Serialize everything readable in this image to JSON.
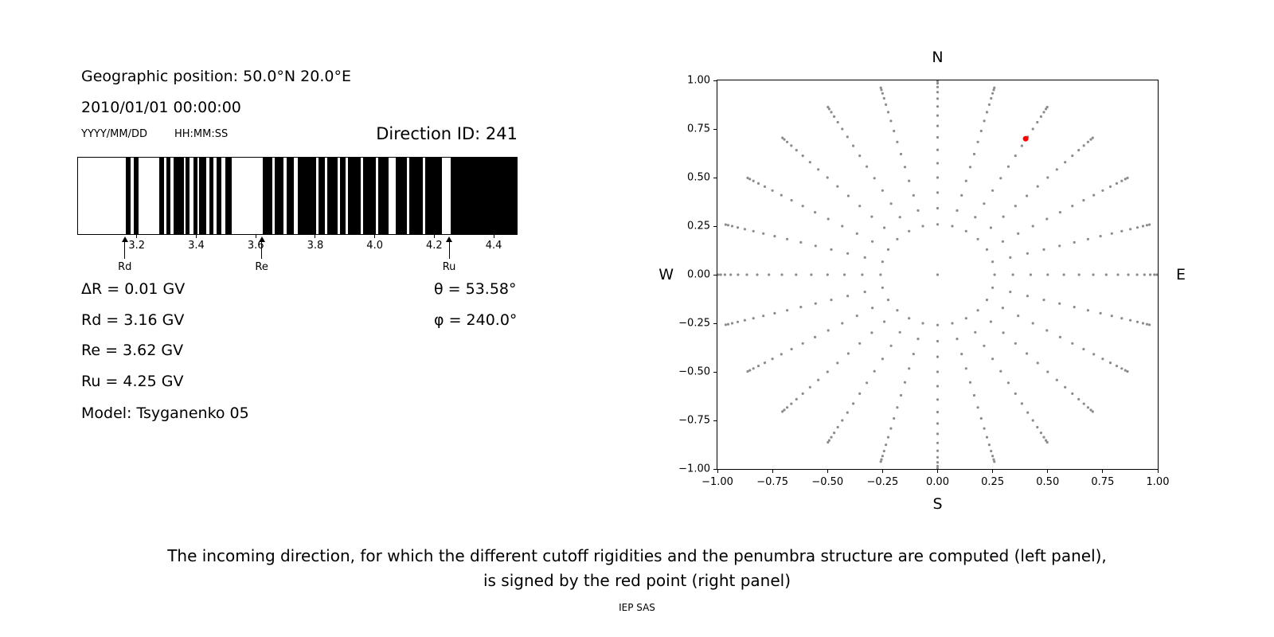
{
  "page": {
    "caption_line1": "The incoming direction, for which the different cutoff rigidities and the penumbra structure are computed (left panel),",
    "caption_line2": "is signed by the red point (right panel)",
    "footer": "IEP SAS",
    "background": "#ffffff"
  },
  "left_panel": {
    "geo_position": "Geographic position: 50.0°N 20.0°E",
    "datetime": "2010/01/01 00:00:00",
    "date_format_label": "YYYY/MM/DD",
    "time_format_label": "HH:MM:SS",
    "direction_id_label": "Direction ID: 241",
    "info_lines": {
      "delta_r": "ΔR = 0.01 GV",
      "rd": "Rd = 3.16 GV",
      "re": "Re = 3.62 GV",
      "ru": "Ru = 4.25 GV",
      "model": "Model: Tsyganenko 05"
    },
    "theta": "θ = 53.58°",
    "phi": "φ = 240.0°"
  },
  "right_panel": {
    "compass": {
      "north": "N",
      "south": "S",
      "west": "W",
      "east": "E"
    }
  },
  "chart_data": [
    {
      "type": "bar",
      "name": "penumbra-structure",
      "title": "Direction ID: 241",
      "xlabel": "",
      "ylabel": "",
      "xlim": [
        3.0,
        4.48
      ],
      "x_tick_values": [
        3.2,
        3.4,
        3.6,
        3.8,
        4.0,
        4.2,
        4.4
      ],
      "x_tick_labels": [
        "3.2",
        "3.4",
        "3.6",
        "3.8",
        "4.0",
        "4.2",
        "4.4"
      ],
      "delta_r_gv": 0.01,
      "rd_gv": 3.16,
      "re_gv": 3.62,
      "ru_gv": 4.25,
      "model": "Tsyganenko 05",
      "theta_deg": 53.58,
      "phi_deg": 240.0,
      "bar_color": "#000000",
      "markers": [
        {
          "label": "Rd",
          "value": 3.16
        },
        {
          "label": "Re",
          "value": 3.62
        },
        {
          "label": "Ru",
          "value": 4.25
        }
      ],
      "allowed_bands_gv": [
        [
          3.16,
          3.176
        ],
        [
          3.186,
          3.202
        ],
        [
          3.272,
          3.29
        ],
        [
          3.298,
          3.312
        ],
        [
          3.32,
          3.355
        ],
        [
          3.362,
          3.376
        ],
        [
          3.388,
          3.4
        ],
        [
          3.408,
          3.432
        ],
        [
          3.442,
          3.456
        ],
        [
          3.466,
          3.482
        ],
        [
          3.494,
          3.516
        ],
        [
          3.62,
          3.652
        ],
        [
          3.662,
          3.69
        ],
        [
          3.702,
          3.726
        ],
        [
          3.738,
          3.8
        ],
        [
          3.808,
          3.83
        ],
        [
          3.838,
          3.872
        ],
        [
          3.88,
          3.9
        ],
        [
          3.908,
          3.95
        ],
        [
          3.958,
          4.0
        ],
        [
          4.008,
          4.044
        ],
        [
          4.068,
          4.105
        ],
        [
          4.113,
          4.16
        ],
        [
          4.168,
          4.224
        ],
        [
          4.252,
          4.48
        ]
      ]
    },
    {
      "type": "scatter",
      "name": "incoming-directions",
      "title": "",
      "xlabel": "S",
      "ylabel": "",
      "xlim": [
        -1,
        1
      ],
      "ylim": [
        -1,
        1
      ],
      "x_tick_values": [
        -1,
        -0.75,
        -0.5,
        -0.25,
        0,
        0.25,
        0.5,
        0.75,
        1
      ],
      "x_tick_labels": [
        "−1.00",
        "−0.75",
        "−0.50",
        "−0.25",
        "0.00",
        "0.25",
        "0.50",
        "0.75",
        "1.00"
      ],
      "y_tick_values": [
        -1,
        -0.75,
        -0.5,
        -0.25,
        0,
        0.25,
        0.5,
        0.75,
        1
      ],
      "y_tick_labels": [
        "−1.00",
        "−0.75",
        "−0.50",
        "−0.25",
        "0.00",
        "0.25",
        "0.50",
        "0.75",
        "1.00"
      ],
      "compass_labels": {
        "top": "N",
        "bottom": "S",
        "left": "W",
        "right": "E"
      },
      "grid_points": {
        "azimuth_start_deg": 0,
        "azimuth_step_deg": 15,
        "azimuth_count": 24,
        "zenith_min_deg": 15,
        "zenith_max_deg": 85,
        "zenith_step_deg": 5,
        "radius_rule": "sin(zenith)",
        "twist_deg": 0,
        "include_center_point": true,
        "color": "#8c8c8c"
      },
      "red_point": {
        "x": 0.4,
        "y": 0.7,
        "theta_deg": 53.58,
        "phi_deg": 240.0,
        "color": "#ff0000"
      }
    }
  ]
}
